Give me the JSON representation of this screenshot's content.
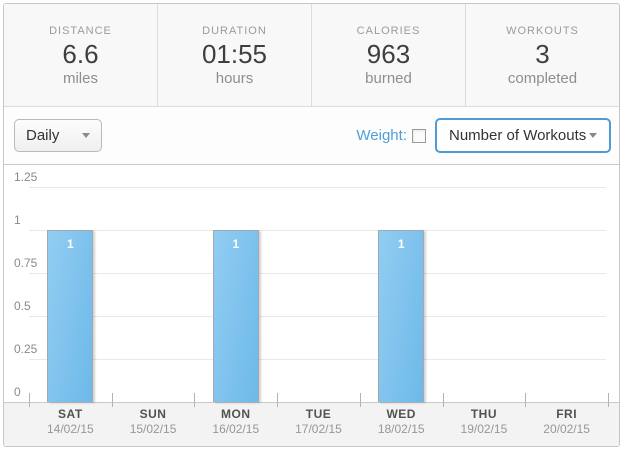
{
  "stats": [
    {
      "label": "DISTANCE",
      "value": "6.6",
      "unit": "miles"
    },
    {
      "label": "DURATION",
      "value": "01:55",
      "unit": "hours"
    },
    {
      "label": "CALORIES",
      "value": "963",
      "unit": "burned"
    },
    {
      "label": "WORKOUTS",
      "value": "3",
      "unit": "completed"
    }
  ],
  "filters": {
    "period_select_value": "Daily",
    "weight_label": "Weight:",
    "weight_checked": false,
    "metric_select_value": "Number of Workouts"
  },
  "colors": {
    "bar_fill": "#7dc1ec",
    "accent_blue": "#4e9bd6"
  },
  "chart_data": {
    "type": "bar",
    "title": "",
    "xlabel": "",
    "ylabel": "",
    "categories": [
      "SAT",
      "SUN",
      "MON",
      "TUE",
      "WED",
      "THU",
      "FRI"
    ],
    "category_dates": [
      "14/02/15",
      "15/02/15",
      "16/02/15",
      "17/02/15",
      "18/02/15",
      "19/02/15",
      "20/02/15"
    ],
    "values": [
      1,
      0,
      1,
      0,
      1,
      0,
      0
    ],
    "bar_labels": [
      "1",
      "",
      "1",
      "",
      "1",
      "",
      ""
    ],
    "ylim": [
      0,
      1.25
    ],
    "ytick_step": 0.25,
    "yticks": [
      "0",
      "0.25",
      "0.5",
      "0.75",
      "1",
      "1.25"
    ],
    "grid": true,
    "legend": "none"
  }
}
